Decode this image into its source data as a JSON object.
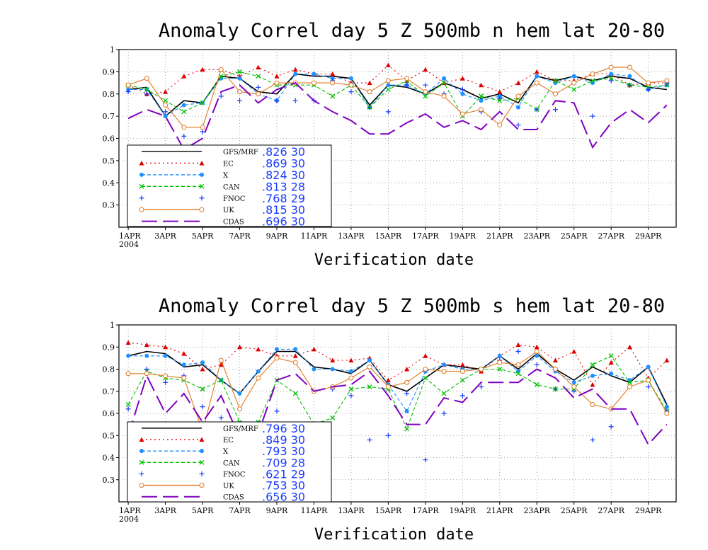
{
  "chart_data": [
    {
      "type": "line",
      "title": "Anomaly Correl  day 5  Z 500mb  n hem  lat 20-80",
      "xlabel": "Verification date",
      "ylabel": "",
      "ylim": [
        0.2,
        1.0
      ],
      "yticks": [
        0.3,
        0.4,
        0.5,
        0.6,
        0.7,
        0.8,
        0.9,
        1
      ],
      "ytick_labels": [
        "0.3",
        "0.4",
        "0.5",
        "0.6",
        "0.7",
        "0.8",
        "0.9",
        "1"
      ],
      "x": [
        "1APR",
        "2APR",
        "3APR",
        "4APR",
        "5APR",
        "6APR",
        "7APR",
        "8APR",
        "9APR",
        "10APR",
        "11APR",
        "12APR",
        "13APR",
        "14APR",
        "15APR",
        "16APR",
        "17APR",
        "18APR",
        "19APR",
        "20APR",
        "21APR",
        "22APR",
        "23APR",
        "24APR",
        "25APR",
        "26APR",
        "27APR",
        "28APR",
        "29APR",
        "30APR"
      ],
      "xtick_labels": [
        "1APR",
        "3APR",
        "5APR",
        "7APR",
        "9APR",
        "11APR",
        "13APR",
        "15APR",
        "17APR",
        "19APR",
        "21APR",
        "23APR",
        "25APR",
        "27APR",
        "29APR"
      ],
      "xtick_year": "2004",
      "grid": true,
      "legend_position": "bottom-left",
      "series": [
        {
          "name": "GFS/MRF",
          "stat": ".826 30",
          "color": "#000000",
          "style": "solid",
          "marker": "none",
          "values": [
            0.82,
            0.83,
            0.7,
            0.77,
            0.76,
            0.88,
            0.87,
            0.81,
            0.8,
            0.89,
            0.88,
            0.88,
            0.87,
            0.75,
            0.84,
            0.83,
            0.8,
            0.85,
            0.82,
            0.78,
            0.8,
            0.76,
            0.88,
            0.86,
            0.88,
            0.86,
            0.88,
            0.87,
            0.83,
            0.82
          ]
        },
        {
          "name": "EC",
          "stat": ".869 30",
          "color": "#e00000",
          "style": "dotted",
          "marker": "triangle",
          "values": [
            0.84,
            0.8,
            0.81,
            0.88,
            0.91,
            0.91,
            0.88,
            0.92,
            0.88,
            0.91,
            0.89,
            0.89,
            0.85,
            0.85,
            0.93,
            0.86,
            0.91,
            0.85,
            0.87,
            0.84,
            0.81,
            0.85,
            0.9,
            0.86,
            0.86,
            0.89,
            0.89,
            0.84,
            0.85,
            0.85
          ]
        },
        {
          "name": "X",
          "stat": ".824 30",
          "color": "#1e90ff",
          "style": "dashed",
          "marker": "circle",
          "values": [
            0.82,
            0.82,
            0.7,
            0.75,
            0.76,
            0.87,
            0.87,
            0.8,
            0.77,
            0.89,
            0.89,
            0.87,
            0.87,
            0.74,
            0.84,
            0.84,
            0.8,
            0.87,
            0.8,
            0.77,
            0.79,
            0.74,
            0.88,
            0.85,
            0.88,
            0.85,
            0.89,
            0.88,
            0.82,
            0.84
          ]
        },
        {
          "name": "CAN",
          "stat": ".813 28",
          "color": "#00c000",
          "style": "dashed",
          "marker": "x",
          "values": [
            0.84,
            0.82,
            0.77,
            0.72,
            0.76,
            0.88,
            0.9,
            0.88,
            0.84,
            0.84,
            0.84,
            0.79,
            0.84,
            0.74,
            0.82,
            0.86,
            0.79,
            0.85,
            0.7,
            0.79,
            0.77,
            0.78,
            0.73,
            0.86,
            0.82,
            0.86,
            0.87,
            0.84,
            0.83,
            0.84
          ]
        },
        {
          "name": "FNOC",
          "stat": ".768 29",
          "color": "#1a3cff",
          "style": "none",
          "marker": "plus",
          "values": [
            0.81,
            0.8,
            0.72,
            0.61,
            0.63,
            0.79,
            0.77,
            0.83,
            0.77,
            0.77,
            0.77,
            0.86,
            0.81,
            0.74,
            0.72,
            0.84,
            0.84,
            0.8,
            0.82,
            0.72,
            0.78,
            0.66,
            0.73,
            0.73,
            0.85,
            0.7,
            0.86,
            0.84,
            0.82,
            0.85
          ]
        },
        {
          "name": "UK",
          "stat": ".815 30",
          "color": "#e07820",
          "style": "solid",
          "marker": "circle-open",
          "values": [
            0.84,
            0.87,
            0.75,
            0.65,
            0.65,
            0.91,
            0.81,
            0.8,
            0.85,
            0.85,
            0.85,
            0.85,
            0.84,
            0.81,
            0.86,
            0.87,
            0.81,
            0.79,
            0.71,
            0.73,
            0.66,
            0.79,
            0.85,
            0.8,
            0.85,
            0.89,
            0.92,
            0.92,
            0.85,
            0.86
          ]
        },
        {
          "name": "CDAS",
          "stat": ".696 30",
          "color": "#8000c0",
          "style": "longdash",
          "marker": "none",
          "values": [
            0.69,
            0.73,
            0.7,
            0.55,
            0.6,
            0.81,
            0.84,
            0.76,
            0.82,
            0.85,
            0.77,
            0.72,
            0.68,
            0.62,
            0.62,
            0.67,
            0.71,
            0.65,
            0.68,
            0.64,
            0.72,
            0.64,
            0.64,
            0.77,
            0.76,
            0.56,
            0.67,
            0.73,
            0.67,
            0.75
          ]
        }
      ]
    },
    {
      "type": "line",
      "title": "Anomaly Correl  day 5  Z 500mb  s hem  lat 20-80",
      "xlabel": "Verification date",
      "ylabel": "",
      "ylim": [
        0.2,
        1.0
      ],
      "yticks": [
        0.3,
        0.4,
        0.5,
        0.6,
        0.7,
        0.8,
        0.9,
        1
      ],
      "ytick_labels": [
        "0.3",
        "0.4",
        "0.5",
        "0.6",
        "0.7",
        "0.8",
        "0.9",
        "1"
      ],
      "x": [
        "1APR",
        "2APR",
        "3APR",
        "4APR",
        "5APR",
        "6APR",
        "7APR",
        "8APR",
        "9APR",
        "10APR",
        "11APR",
        "12APR",
        "13APR",
        "14APR",
        "15APR",
        "16APR",
        "17APR",
        "18APR",
        "19APR",
        "20APR",
        "21APR",
        "22APR",
        "23APR",
        "24APR",
        "25APR",
        "26APR",
        "27APR",
        "28APR",
        "29APR",
        "30APR"
      ],
      "xtick_labels": [
        "1APR",
        "3APR",
        "5APR",
        "7APR",
        "9APR",
        "11APR",
        "13APR",
        "15APR",
        "17APR",
        "19APR",
        "21APR",
        "23APR",
        "25APR",
        "27APR",
        "29APR"
      ],
      "xtick_year": "2004",
      "grid": true,
      "legend_position": "bottom-left",
      "series": [
        {
          "name": "GFS/MRF",
          "stat": ".796 30",
          "color": "#000000",
          "style": "solid",
          "marker": "none",
          "values": [
            0.86,
            0.88,
            0.87,
            0.81,
            0.82,
            0.75,
            0.69,
            0.79,
            0.88,
            0.88,
            0.81,
            0.8,
            0.78,
            0.84,
            0.73,
            0.7,
            0.76,
            0.82,
            0.81,
            0.8,
            0.86,
            0.8,
            0.87,
            0.8,
            0.75,
            0.81,
            0.77,
            0.74,
            0.81,
            0.64
          ]
        },
        {
          "name": "EC",
          "stat": ".849 30",
          "color": "#e00000",
          "style": "dotted",
          "marker": "triangle",
          "values": [
            0.92,
            0.91,
            0.9,
            0.87,
            0.8,
            0.82,
            0.9,
            0.89,
            0.86,
            0.86,
            0.89,
            0.84,
            0.84,
            0.85,
            0.75,
            0.8,
            0.86,
            0.82,
            0.82,
            0.79,
            0.86,
            0.91,
            0.9,
            0.84,
            0.88,
            0.73,
            0.83,
            0.9,
            0.76,
            0.84
          ]
        },
        {
          "name": "X",
          "stat": ".793 30",
          "color": "#1e90ff",
          "style": "dashed",
          "marker": "circle",
          "values": [
            0.86,
            0.86,
            0.86,
            0.82,
            0.83,
            0.75,
            0.69,
            0.79,
            0.89,
            0.89,
            0.8,
            0.8,
            0.79,
            0.84,
            0.73,
            0.61,
            0.79,
            0.82,
            0.8,
            0.8,
            0.86,
            0.79,
            0.86,
            0.79,
            0.74,
            0.77,
            0.78,
            0.75,
            0.81,
            0.63
          ]
        },
        {
          "name": "CAN",
          "stat": ".709 28",
          "color": "#00c000",
          "style": "dashed",
          "marker": "x",
          "values": [
            0.64,
            0.79,
            0.76,
            0.75,
            0.71,
            0.75,
            0.56,
            0.56,
            0.75,
            0.69,
            0.55,
            0.58,
            0.71,
            0.72,
            0.71,
            0.53,
            0.76,
            0.69,
            0.75,
            0.8,
            0.8,
            0.78,
            0.73,
            0.71,
            0.71,
            0.82,
            0.86,
            0.74,
            0.75,
            0.61
          ]
        },
        {
          "name": "FNOC",
          "stat": ".621 29",
          "color": "#1a3cff",
          "style": "none",
          "marker": "plus",
          "values": [
            0.62,
            0.8,
            0.74,
            0.77,
            0.63,
            0.58,
            0.37,
            0.4,
            0.61,
            0.42,
            0.4,
            0.71,
            0.68,
            0.48,
            0.5,
            0.69,
            0.39,
            0.6,
            0.68,
            0.72,
            0.84,
            0.88,
            0.82,
            0.71,
            0.7,
            0.48,
            0.54,
            0.72,
            0.72,
            0.61
          ]
        },
        {
          "name": "UK",
          "stat": ".753 30",
          "color": "#e07820",
          "style": "solid",
          "marker": "circle-open",
          "values": [
            0.78,
            0.78,
            0.77,
            0.76,
            0.52,
            0.84,
            0.62,
            0.76,
            0.85,
            0.83,
            0.7,
            0.72,
            0.76,
            0.81,
            0.72,
            0.74,
            0.8,
            0.79,
            0.79,
            0.8,
            0.83,
            0.82,
            0.88,
            0.8,
            0.72,
            0.64,
            0.62,
            0.72,
            0.75,
            0.6
          ]
        },
        {
          "name": "CDAS",
          "stat": ".656 30",
          "color": "#8000c0",
          "style": "longdash",
          "marker": "none",
          "values": [
            0.5,
            0.77,
            0.6,
            0.69,
            0.56,
            0.68,
            0.49,
            0.51,
            0.75,
            0.78,
            0.7,
            0.72,
            0.73,
            0.79,
            0.68,
            0.55,
            0.55,
            0.67,
            0.65,
            0.74,
            0.74,
            0.74,
            0.8,
            0.76,
            0.67,
            0.71,
            0.62,
            0.62,
            0.46,
            0.55
          ]
        }
      ]
    }
  ]
}
